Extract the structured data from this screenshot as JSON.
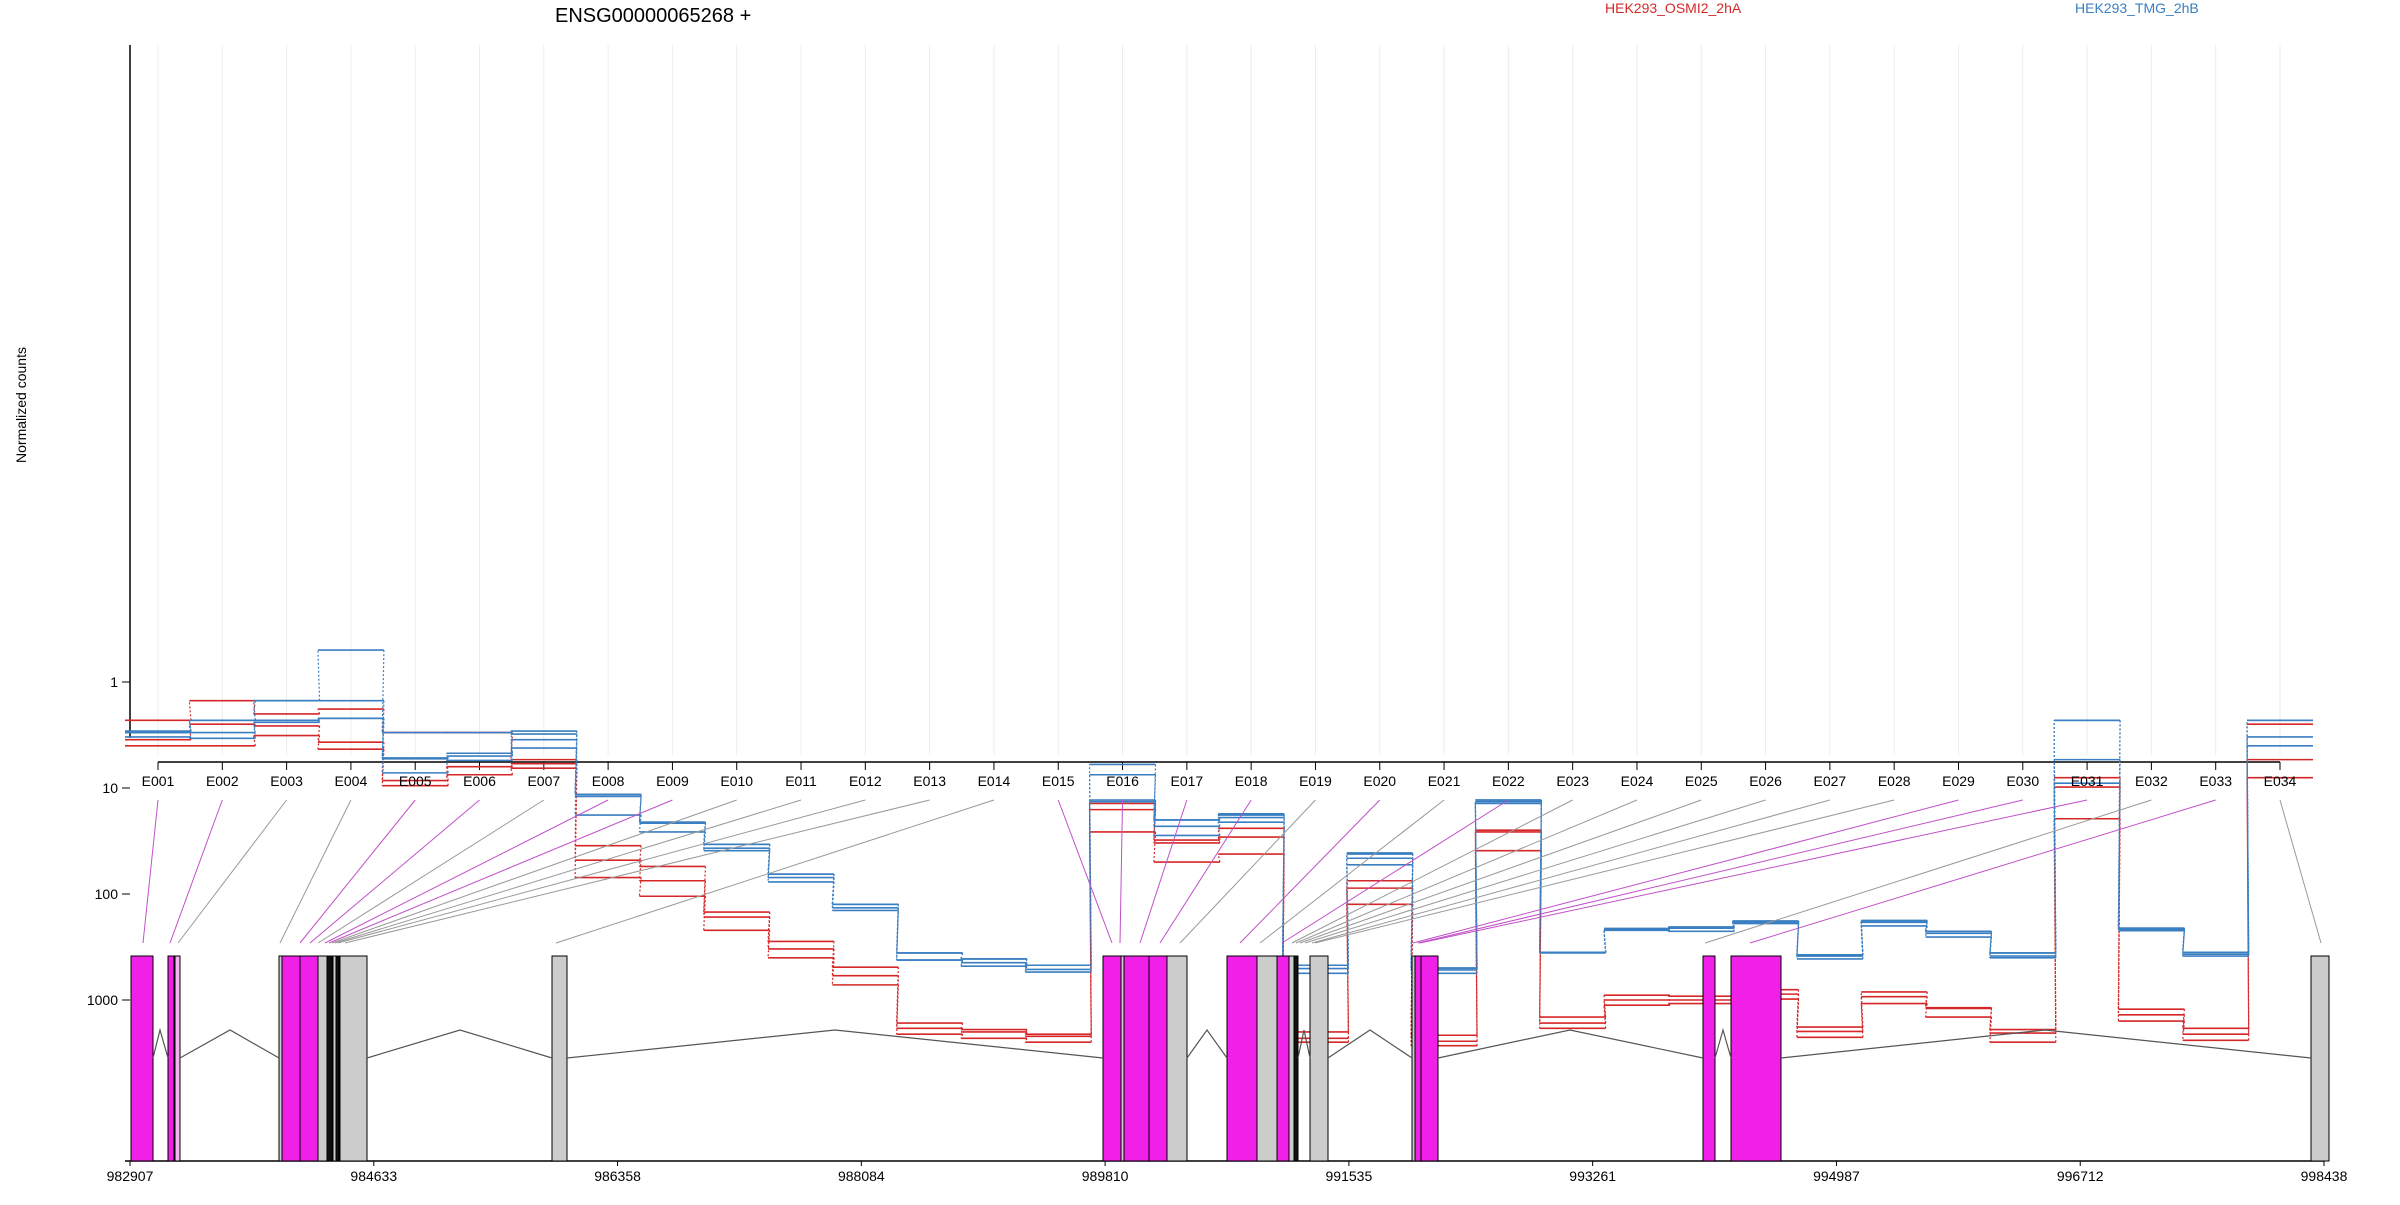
{
  "chart_data": {
    "type": "line",
    "title": "ENSG00000065268 +",
    "ylabel": "Normalized counts",
    "yscale": "log",
    "ylim": [
      0.4,
      3500
    ],
    "yticks": [
      1,
      10,
      100,
      1000
    ],
    "ytick_labels": [
      "1",
      "10",
      "100",
      "1000"
    ],
    "grid": "vertical",
    "legend": [
      {
        "label": "HEK293_OSMI2_2hA",
        "color": "#d62728"
      },
      {
        "label": "HEK293_TMG_2hB",
        "color": "#3a7fc1"
      }
    ],
    "categories": [
      "E001",
      "E002",
      "E003",
      "E004",
      "E005",
      "E006",
      "E007",
      "E008",
      "E009",
      "E010",
      "E011",
      "E012",
      "E013",
      "E014",
      "E015",
      "E016",
      "E017",
      "E018",
      "E019",
      "E020",
      "E021",
      "E022",
      "E023",
      "E024",
      "E025",
      "E026",
      "E027",
      "E028",
      "E029",
      "E030",
      "E031",
      "E032",
      "E033",
      "E034"
    ],
    "series": [
      {
        "group": "HEK293_OSMI2_2hA",
        "color": "#d62728",
        "values": [
          4.0,
          4.0,
          3.2,
          4.3,
          9.5,
          7.5,
          6.5,
          70,
          105,
          220,
          400,
          720,
          2100,
          2300,
          2500,
          26,
          50,
          42,
          2500,
          125,
          2700,
          39,
          1850,
          1120,
          1080,
          980,
          2250,
          1080,
          1450,
          2500,
          19.5,
          1580,
          2400,
          8.0
        ]
      },
      {
        "group": "HEK293_OSMI2_2hA",
        "color": "#d62728",
        "values": [
          3.5,
          2.5,
          2.6,
          3.7,
          8.5,
          6.3,
          5.9,
          48,
          75,
          165,
          330,
          590,
          1850,
          2000,
          2200,
          16,
          33,
          29,
          2300,
          88,
          2450,
          26,
          1650,
          1000,
          1000,
          880,
          1980,
          930,
          1200,
          2050,
          9.8,
          1380,
          2100,
          5.4
        ]
      },
      {
        "group": "HEK293_OSMI2_2hA",
        "color": "#d62728",
        "values": [
          2.3,
          1.5,
          2.0,
          1.8,
          3.0,
          3.0,
          5.4,
          35,
          55,
          148,
          280,
          490,
          1650,
          1900,
          2100,
          14,
          31,
          24,
          2000,
          75,
          2150,
          25,
          1450,
          900,
          920,
          800,
          1800,
          840,
          1180,
          1900,
          8.0,
          1220,
          1850,
          2.5
        ]
      },
      {
        "group": "HEK293_TMG_2hB",
        "color": "#3a7fc1",
        "values": [
          3.3,
          3.4,
          2.4,
          2.2,
          7.2,
          5.5,
          4.2,
          18,
          26,
          39,
          77,
          143,
          420,
          480,
          545,
          13.5,
          28,
          21,
          560,
          53,
          560,
          14,
          360,
          220,
          225,
          190,
          410,
          200,
          255,
          400,
          9.0,
          222,
          385,
          4.0
        ]
      },
      {
        "group": "HEK293_TMG_2hB",
        "color": "#3a7fc1",
        "values": [
          3.0,
          3.0,
          2.3,
          2.2,
          5.3,
          5.0,
          3.5,
          12,
          21.5,
          37,
          70,
          135,
          420,
          445,
          515,
          13,
          23,
          19,
          505,
          46,
          520,
          13.5,
          355,
          215,
          210,
          185,
          385,
          185,
          235,
          385,
          5.4,
          215,
          370,
          3.3
        ]
      },
      {
        "group": "HEK293_TMG_2hB",
        "color": "#3a7fc1",
        "values": [
          2.9,
          2.3,
          1.5,
          1.5,
          5.2,
          4.7,
          2.9,
          11.5,
          21,
          34,
          65,
          125,
          360,
          410,
          470,
          7.5,
          20,
          18,
          470,
          42,
          500,
          13,
          355,
          212,
          205,
          180,
          375,
          178,
          225,
          360,
          2.3,
          210,
          355,
          2.3
        ]
      },
      {
        "group": "HEK293_TMG_2hB",
        "color": "#3a7fc1",
        "values": [
          3.0,
          2.3,
          1.5,
          0.5,
          3.0,
          3.0,
          3.1,
          11.5,
          21,
          34,
          65,
          125,
          360,
          410,
          470,
          6.0,
          20,
          17.5,
          470,
          41,
          500,
          13,
          355,
          212,
          205,
          180,
          375,
          178,
          225,
          360,
          2.3,
          210,
          355,
          2.3
        ]
      }
    ],
    "gene_model": {
      "coordinate_ticks": [
        "982907",
        "984633",
        "986358",
        "988084",
        "989810",
        "991535",
        "993261",
        "994987",
        "996712",
        "998438"
      ],
      "colors": {
        "tested": "#f020e8",
        "untested": "#cccccc",
        "intron": "#555555"
      }
    }
  }
}
